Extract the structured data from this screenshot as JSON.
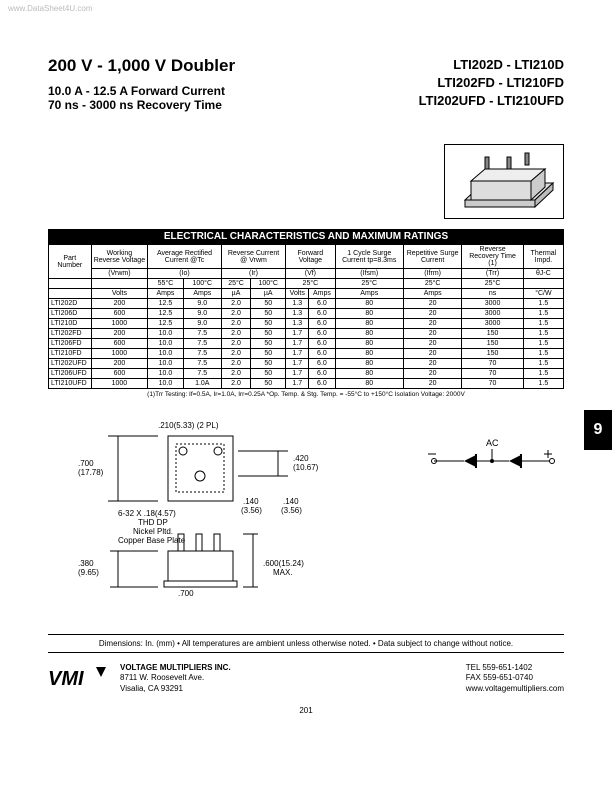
{
  "watermark": "www.DataSheet4U.com",
  "header": {
    "title": "200 V - 1,000 V  Doubler",
    "sub1": "10.0 A - 12.5 A Forward Current",
    "sub2": "70 ns - 3000 ns Recovery Time",
    "partLines": [
      "LTI202D - LTI210D",
      "LTI202FD - LTI210FD",
      "LTI202UFD - LTI210UFD"
    ]
  },
  "tableTitle": "ELECTRICAL CHARACTERISTICS AND MAXIMUM RATINGS",
  "columns": {
    "h1": [
      "Part Number",
      "Working Reverse Voltage",
      "Average Rectified Current @Tc",
      "Reverse Current @ Vrwm",
      "Forward Voltage",
      "1 Cycle Surge Current tp=8.3ms",
      "Repetitive Surge Current",
      "Reverse Recovery Time (1)",
      "Thermal Impd."
    ],
    "syms": [
      "(Vrwm)",
      "(Io)",
      "(Ir)",
      "(Vf)",
      "(Ifsm)",
      "(Ifrm)",
      "(Trr)",
      "θJ-C"
    ],
    "temps": [
      "",
      "",
      "55°C",
      "100°C",
      "25°C",
      "100°C",
      "25°C",
      "",
      "25°C",
      "25°C",
      "25°C",
      ""
    ],
    "units": [
      "",
      "Volts",
      "Amps",
      "Amps",
      "µA",
      "µA",
      "Volts",
      "Amps",
      "Amps",
      "Amps",
      "ns",
      "°C/W"
    ]
  },
  "rows": [
    {
      "pn": "LTI202D",
      "v": "200",
      "a55": "12.5",
      "a100": "9.0",
      "ir25": "2.0",
      "ir100": "50",
      "vf": "1.3",
      "ifa": "6.0",
      "ifsm": "80",
      "ifrm": "20",
      "trr": "3000",
      "th": "1.5"
    },
    {
      "pn": "LTI206D",
      "v": "600",
      "a55": "12.5",
      "a100": "9.0",
      "ir25": "2.0",
      "ir100": "50",
      "vf": "1.3",
      "ifa": "6.0",
      "ifsm": "80",
      "ifrm": "20",
      "trr": "3000",
      "th": "1.5"
    },
    {
      "pn": "LTI210D",
      "v": "1000",
      "a55": "12.5",
      "a100": "9.0",
      "ir25": "2.0",
      "ir100": "50",
      "vf": "1.3",
      "ifa": "6.0",
      "ifsm": "80",
      "ifrm": "20",
      "trr": "3000",
      "th": "1.5"
    },
    {
      "pn": "LTI202FD",
      "v": "200",
      "a55": "10.0",
      "a100": "7.5",
      "ir25": "2.0",
      "ir100": "50",
      "vf": "1.7",
      "ifa": "6.0",
      "ifsm": "80",
      "ifrm": "20",
      "trr": "150",
      "th": "1.5"
    },
    {
      "pn": "LTI206FD",
      "v": "600",
      "a55": "10.0",
      "a100": "7.5",
      "ir25": "2.0",
      "ir100": "50",
      "vf": "1.7",
      "ifa": "6.0",
      "ifsm": "80",
      "ifrm": "20",
      "trr": "150",
      "th": "1.5"
    },
    {
      "pn": "LTI210FD",
      "v": "1000",
      "a55": "10.0",
      "a100": "7.5",
      "ir25": "2.0",
      "ir100": "50",
      "vf": "1.7",
      "ifa": "6.0",
      "ifsm": "80",
      "ifrm": "20",
      "trr": "150",
      "th": "1.5"
    },
    {
      "pn": "LTI202UFD",
      "v": "200",
      "a55": "10.0",
      "a100": "7.5",
      "ir25": "2.0",
      "ir100": "50",
      "vf": "1.7",
      "ifa": "6.0",
      "ifsm": "80",
      "ifrm": "20",
      "trr": "70",
      "th": "1.5"
    },
    {
      "pn": "LTI206UFD",
      "v": "600",
      "a55": "10.0",
      "a100": "7.5",
      "ir25": "2.0",
      "ir100": "50",
      "vf": "1.7",
      "ifa": "6.0",
      "ifsm": "80",
      "ifrm": "20",
      "trr": "70",
      "th": "1.5"
    },
    {
      "pn": "LTI210UFD",
      "v": "1000",
      "a55": "10.0",
      "a100": "1.0A",
      "ir25": "2.0",
      "ir100": "50",
      "vf": "1.7",
      "ifa": "6.0",
      "ifsm": "80",
      "ifrm": "20",
      "trr": "70",
      "th": "1.5"
    }
  ],
  "footnote": "(1)Trr Testing:  If=0.5A,  Ir=1.0A,  Irr=0.25A    *Op. Temp.  &  Stg. Temp. = -55°C to +150°C    Isolation Voltage: 2000V",
  "mech": {
    "d1": ".210(5.33) (2 PL)",
    "d2": ".700\n(17.78)",
    "d3": "6-32 X .18(4.57)\nTHD DP",
    "d4": "Nickel Pltd.\nCopper Base Plate",
    "d5": ".380\n(9.65)",
    "d6": ".700\n(17.78)",
    "d7": ".140\n(3.56)",
    "d8": ".140\n(3.56)",
    "d9": ".420\n(10.67)",
    "d10": ".600(15.24)\nMAX.",
    "ac": "AC"
  },
  "dimsNote": "Dimensions: In. (mm) • All temperatures are ambient unless otherwise noted. • Data subject to change without notice.",
  "footer": {
    "company": "VOLTAGE MULTIPLIERS INC.",
    "addr1": "8711 W. Roosevelt Ave.",
    "addr2": "Visalia, CA 93291",
    "tel": "TEL          559-651-1402",
    "fax": "FAX          559-651-0740",
    "web": "www.voltagemultipliers.com"
  },
  "pageNum": "201",
  "sideTab": "9",
  "colors": {
    "black": "#000000",
    "white": "#ffffff",
    "watermark": "#bbbbbb"
  }
}
